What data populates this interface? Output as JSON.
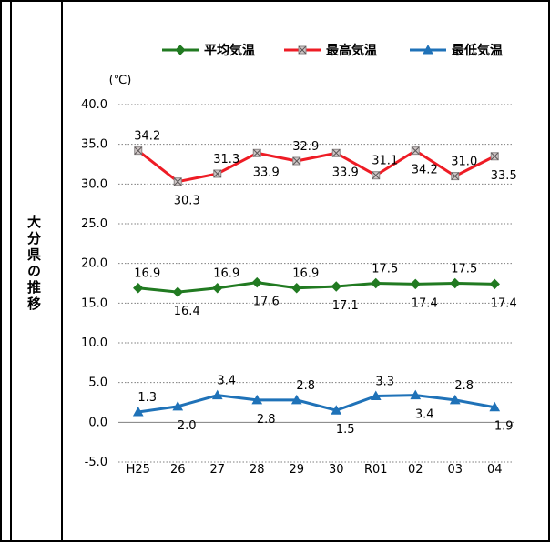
{
  "side_label": "大分県の推移",
  "chart_data": {
    "type": "line",
    "title": "",
    "xlabel": "",
    "ylabel": "(℃)",
    "categories": [
      "H25",
      "26",
      "27",
      "28",
      "29",
      "30",
      "R01",
      "02",
      "03",
      "04"
    ],
    "ylim": [
      -5.0,
      40.0
    ],
    "yticks": [
      "-5.0",
      "0.0",
      "5.0",
      "10.0",
      "15.0",
      "20.0",
      "25.0",
      "30.0",
      "35.0",
      "40.0"
    ],
    "grid": true,
    "legend_position": "top-right",
    "series": [
      {
        "name": "平均気温",
        "color": "#217a21",
        "marker": "diamond",
        "values": [
          16.9,
          16.4,
          16.9,
          17.6,
          16.9,
          17.1,
          17.5,
          17.4,
          17.5,
          17.4
        ],
        "labels": [
          "16.9",
          "16.4",
          "16.9",
          "17.6",
          "16.9",
          "17.1",
          "17.5",
          "17.4",
          "17.5",
          "17.4"
        ]
      },
      {
        "name": "最高気温",
        "color": "#ee1c25",
        "marker": "square",
        "values": [
          34.2,
          30.3,
          31.3,
          33.9,
          32.9,
          33.9,
          31.1,
          34.2,
          31.0,
          33.5
        ],
        "labels": [
          "34.2",
          "30.3",
          "31.3",
          "33.9",
          "32.9",
          "33.9",
          "31.1",
          "34.2",
          "31.0",
          "33.5"
        ]
      },
      {
        "name": "最低気温",
        "color": "#1f72b8",
        "marker": "triangle",
        "values": [
          1.3,
          2.0,
          3.4,
          2.8,
          2.8,
          1.5,
          3.3,
          3.4,
          2.8,
          1.9
        ],
        "labels": [
          "1.3",
          "2.0",
          "3.4",
          "2.8",
          "2.8",
          "1.5",
          "3.3",
          "3.4",
          "2.8",
          "1.9"
        ]
      }
    ]
  }
}
